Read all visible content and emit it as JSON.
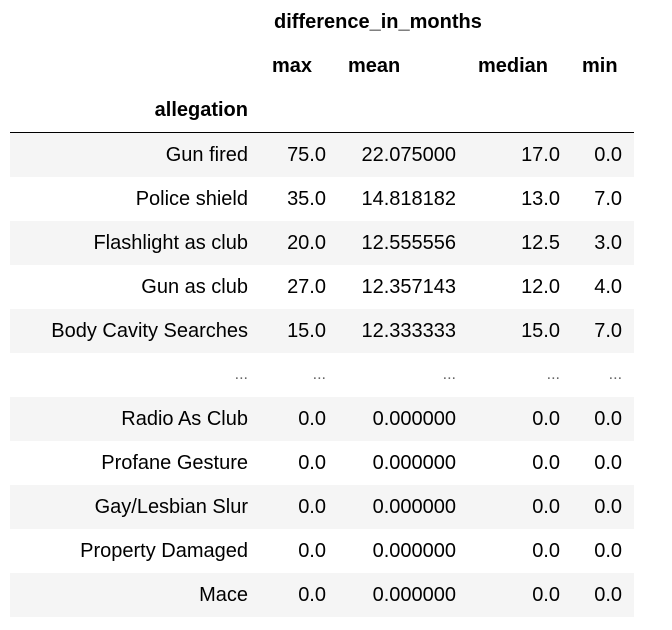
{
  "table": {
    "column_group": "difference_in_months",
    "columns": [
      "max",
      "mean",
      "median",
      "min"
    ],
    "index_name": "allegation",
    "rows": [
      {
        "label": "Gun fired",
        "values": [
          "75.0",
          "22.075000",
          "17.0",
          "0.0"
        ]
      },
      {
        "label": "Police shield",
        "values": [
          "35.0",
          "14.818182",
          "13.0",
          "7.0"
        ]
      },
      {
        "label": "Flashlight as club",
        "values": [
          "20.0",
          "12.555556",
          "12.5",
          "3.0"
        ]
      },
      {
        "label": "Gun as club",
        "values": [
          "27.0",
          "12.357143",
          "12.0",
          "4.0"
        ]
      },
      {
        "label": "Body Cavity Searches",
        "values": [
          "15.0",
          "12.333333",
          "15.0",
          "7.0"
        ]
      },
      {
        "label": "...",
        "values": [
          "...",
          "...",
          "...",
          "..."
        ]
      },
      {
        "label": "Radio As Club",
        "values": [
          "0.0",
          "0.000000",
          "0.0",
          "0.0"
        ]
      },
      {
        "label": "Profane Gesture",
        "values": [
          "0.0",
          "0.000000",
          "0.0",
          "0.0"
        ]
      },
      {
        "label": "Gay/Lesbian Slur",
        "values": [
          "0.0",
          "0.000000",
          "0.0",
          "0.0"
        ]
      },
      {
        "label": "Property Damaged",
        "values": [
          "0.0",
          "0.000000",
          "0.0",
          "0.0"
        ]
      },
      {
        "label": "Mace",
        "values": [
          "0.0",
          "0.000000",
          "0.0",
          "0.0"
        ]
      }
    ]
  }
}
